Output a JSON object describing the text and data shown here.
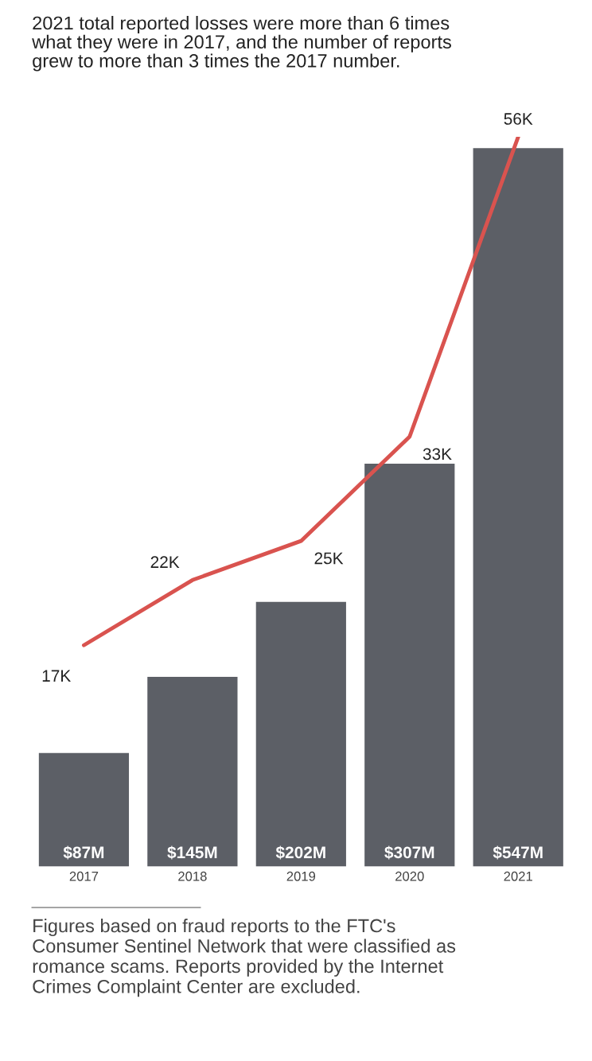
{
  "chart_data": {
    "type": "bar",
    "title": "2021 total reported losses were more than 6 times\nwhat they were in 2017, and the number of reports\ngrew to more than 3 times the 2017 number.",
    "categories": [
      "2017",
      "2018",
      "2019",
      "2020",
      "2021"
    ],
    "series": [
      {
        "type": "bar",
        "color": "#5c5f66",
        "values": [
          87,
          145,
          202,
          307,
          547
        ],
        "value_labels": [
          "$87M",
          "$145M",
          "$202M",
          "$307M",
          "$547M"
        ]
      },
      {
        "type": "line",
        "axis": "y2",
        "color": "#d9534f",
        "values": [
          17,
          22,
          25,
          33,
          56
        ],
        "value_labels": [
          "17K",
          "22K",
          "25K",
          "33K",
          "56K"
        ]
      }
    ],
    "tick_labels": "x",
    "grid": false,
    "legend": false,
    "marker": "none",
    "line_style": "solid",
    "annotations": [
      "Figures based on fraud reports to the FTC's\nConsumer Sentinel Network that were classified as\nromance scams. Reports provided by the Internet\nCrimes Complaint Center are excluded."
    ]
  }
}
